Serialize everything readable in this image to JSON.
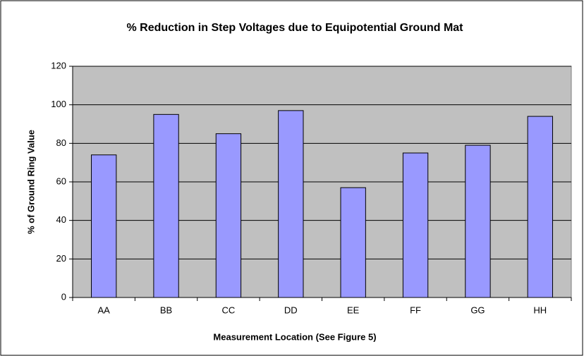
{
  "chart_data": {
    "type": "bar",
    "title": "% Reduction in Step Voltages due to Equipotential Ground Mat",
    "x_label": "Measurement Location (See Figure 5)",
    "y_label": "% of Ground Ring Value",
    "categories": [
      "AA",
      "BB",
      "CC",
      "DD",
      "EE",
      "FF",
      "GG",
      "HH"
    ],
    "values": [
      74,
      95,
      85,
      97,
      57,
      75,
      79,
      94
    ],
    "color": "#9999ff",
    "ylim": [
      0,
      120
    ],
    "yticks": [
      0,
      20,
      40,
      60,
      80,
      100,
      120
    ],
    "grid": true
  }
}
